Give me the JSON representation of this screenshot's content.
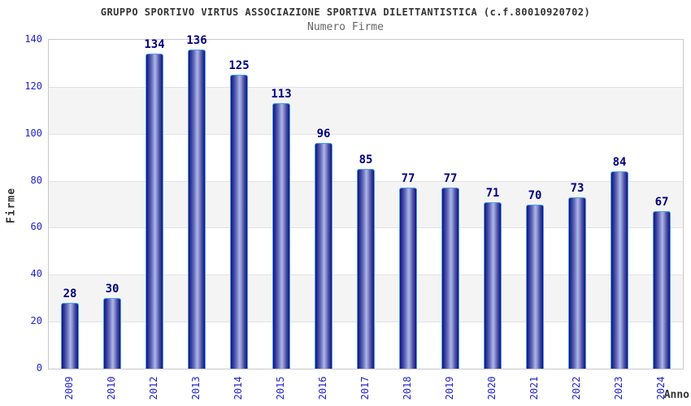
{
  "header": {
    "title": "GRUPPO SPORTIVO VIRTUS ASSOCIAZIONE SPORTIVA DILETTANTISTICA (c.f.80010920702)",
    "subtitle": "Numero Firme"
  },
  "chart_data": {
    "type": "bar",
    "title": "GRUPPO SPORTIVO VIRTUS ASSOCIAZIONE SPORTIVA DILETTANTISTICA (c.f.80010920702)",
    "subtitle": "Numero Firme",
    "xlabel": "Anno",
    "ylabel": "Firme",
    "categories": [
      "2009",
      "2010",
      "2012",
      "2013",
      "2014",
      "2015",
      "2016",
      "2017",
      "2018",
      "2019",
      "2020",
      "2021",
      "2022",
      "2023",
      "2024"
    ],
    "values": [
      28,
      30,
      134,
      136,
      125,
      113,
      96,
      85,
      77,
      77,
      71,
      70,
      73,
      84,
      67
    ],
    "ylim": [
      0,
      140
    ],
    "ytick_step": 20,
    "yticks": [
      0,
      20,
      40,
      60,
      80,
      100,
      120,
      140
    ],
    "grid": true,
    "alternating_bands": true,
    "legend": "none",
    "colors": {
      "title": "#333333",
      "subtitle": "#666666",
      "tick_label": "#2222cc",
      "value_label": "#000080",
      "axis_title": "#333333",
      "band": "#f4f4f4",
      "gridline": "#e2e2e2",
      "plot_border": "#c9c9c9",
      "bar_outline": "#49a0ef",
      "bar_gradient_stops": [
        "#14147a 0%",
        "#333a9c 15%",
        "#6b74c0 35%",
        "#adb4e4 52%",
        "#9aa2d8 60%",
        "#4a51a8 80%",
        "#14147a 100%"
      ]
    }
  }
}
